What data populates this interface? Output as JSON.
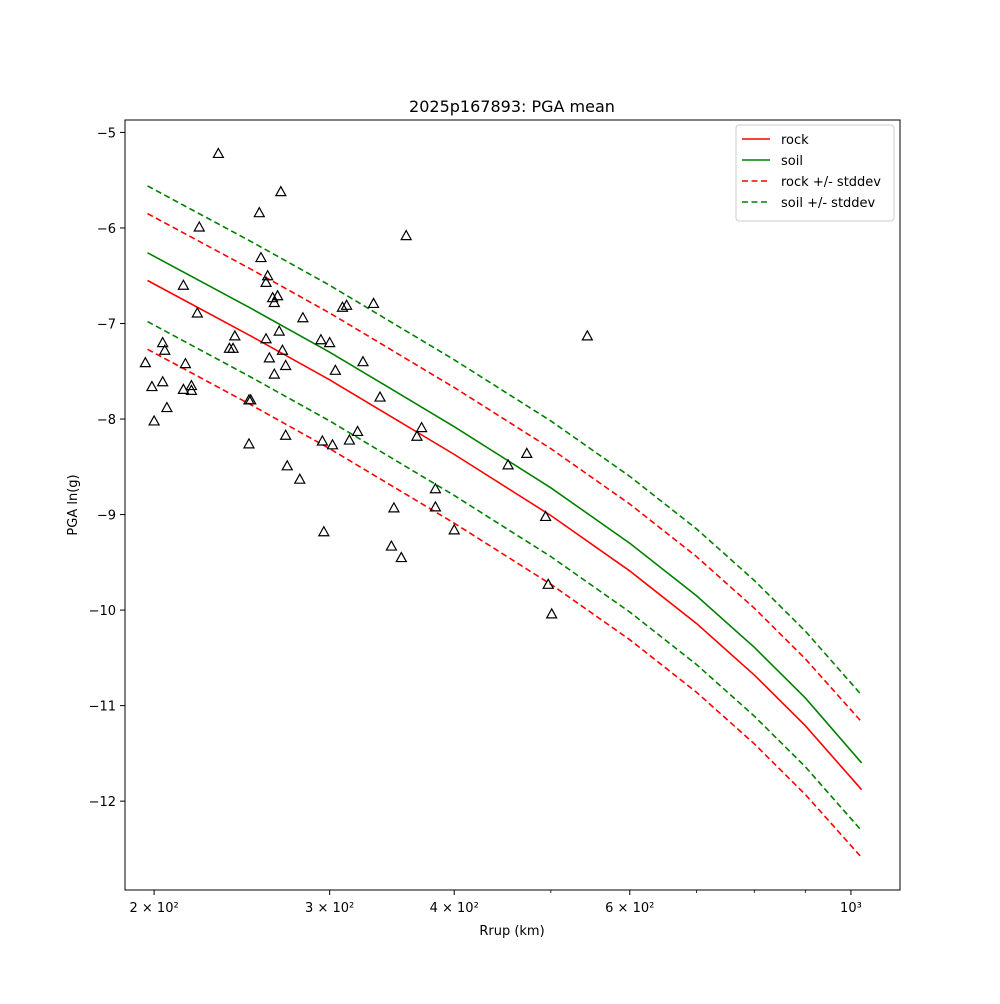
{
  "chart_data": {
    "type": "scatter",
    "title": "2025p167893: PGA mean",
    "xlabel": "Rrup (km)",
    "ylabel": "PGA ln(g)",
    "xscale": "log",
    "xlim": [
      187,
      1120
    ],
    "ylim": [
      -12.93,
      -4.87
    ],
    "x_ticks": [
      {
        "value": 200,
        "label": "2 × 10²"
      },
      {
        "value": 300,
        "label": "3 × 10²"
      },
      {
        "value": 400,
        "label": "4 × 10²"
      },
      {
        "value": 600,
        "label": "6 × 10²"
      },
      {
        "value": 1000,
        "label": "10³"
      }
    ],
    "x_minor_ticks": [
      500,
      700,
      800,
      900
    ],
    "y_ticks": [
      {
        "value": -5,
        "label": "−5"
      },
      {
        "value": -6,
        "label": "−6"
      },
      {
        "value": -7,
        "label": "−7"
      },
      {
        "value": -8,
        "label": "−8"
      },
      {
        "value": -9,
        "label": "−9"
      },
      {
        "value": -10,
        "label": "−10"
      },
      {
        "value": -11,
        "label": "−11"
      },
      {
        "value": -12,
        "label": "−12"
      }
    ],
    "grid": false,
    "legend_position": "top-right",
    "series": [
      {
        "name": "rock",
        "kind": "line",
        "style": "solid",
        "color": "#ff0000",
        "x": [
          197,
          250,
          300,
          400,
          500,
          600,
          700,
          800,
          900,
          1025
        ],
        "y": [
          -6.55,
          -7.13,
          -7.59,
          -8.37,
          -9.01,
          -9.59,
          -10.14,
          -10.68,
          -11.21,
          -11.88
        ]
      },
      {
        "name": "soil",
        "kind": "line",
        "style": "solid",
        "color": "#008000",
        "x": [
          197,
          250,
          300,
          400,
          500,
          600,
          700,
          800,
          900,
          1025
        ],
        "y": [
          -6.26,
          -6.84,
          -7.3,
          -8.08,
          -8.72,
          -9.3,
          -9.85,
          -10.39,
          -10.92,
          -11.6
        ]
      },
      {
        "name": "rock +/- stddev",
        "kind": "line",
        "style": "dashed",
        "color": "#ff0000",
        "x": [
          197,
          250,
          300,
          400,
          500,
          600,
          700,
          800,
          900,
          1025
        ],
        "y": [
          -5.85,
          -6.43,
          -6.89,
          -7.67,
          -8.31,
          -8.89,
          -9.44,
          -9.98,
          -10.51,
          -11.17
        ]
      },
      {
        "name": "",
        "kind": "line",
        "style": "dashed",
        "color": "#ff0000",
        "x": [
          197,
          250,
          300,
          400,
          500,
          600,
          700,
          800,
          900,
          1025
        ],
        "y": [
          -7.27,
          -7.85,
          -8.31,
          -9.09,
          -9.73,
          -10.31,
          -10.86,
          -11.4,
          -11.93,
          -12.59
        ]
      },
      {
        "name": "soil +/- stddev",
        "kind": "line",
        "style": "dashed",
        "color": "#008000",
        "x": [
          197,
          250,
          300,
          400,
          500,
          600,
          700,
          800,
          900,
          1025
        ],
        "y": [
          -5.56,
          -6.14,
          -6.6,
          -7.38,
          -8.02,
          -8.6,
          -9.15,
          -9.69,
          -10.22,
          -10.89
        ]
      },
      {
        "name": "",
        "kind": "line",
        "style": "dashed",
        "color": "#008000",
        "x": [
          197,
          250,
          300,
          400,
          500,
          600,
          700,
          800,
          900,
          1025
        ],
        "y": [
          -6.98,
          -7.56,
          -8.02,
          -8.8,
          -9.44,
          -10.02,
          -10.57,
          -11.11,
          -11.64,
          -12.31
        ]
      },
      {
        "name": "",
        "kind": "scatter",
        "marker": "triangle",
        "color": "#000000",
        "points": [
          [
            196,
            -7.41
          ],
          [
            199,
            -7.66
          ],
          [
            200,
            -8.02
          ],
          [
            204,
            -7.61
          ],
          [
            204,
            -7.2
          ],
          [
            205,
            -7.28
          ],
          [
            206,
            -7.88
          ],
          [
            214,
            -6.6
          ],
          [
            214,
            -7.69
          ],
          [
            215,
            -7.42
          ],
          [
            218,
            -7.65
          ],
          [
            218,
            -7.7
          ],
          [
            221,
            -6.89
          ],
          [
            222,
            -5.99
          ],
          [
            232,
            -5.22
          ],
          [
            238,
            -7.26
          ],
          [
            240,
            -7.26
          ],
          [
            241,
            -7.13
          ],
          [
            249,
            -7.8
          ],
          [
            249,
            -8.26
          ],
          [
            250,
            -7.8
          ],
          [
            255,
            -5.84
          ],
          [
            256,
            -6.31
          ],
          [
            259,
            -6.57
          ],
          [
            259,
            -7.16
          ],
          [
            260,
            -6.5
          ],
          [
            261,
            -7.36
          ],
          [
            263,
            -6.73
          ],
          [
            264,
            -6.78
          ],
          [
            264,
            -7.53
          ],
          [
            266,
            -6.71
          ],
          [
            267,
            -7.08
          ],
          [
            268,
            -5.62
          ],
          [
            269,
            -7.28
          ],
          [
            271,
            -7.44
          ],
          [
            271,
            -8.17
          ],
          [
            272,
            -8.49
          ],
          [
            280,
            -8.63
          ],
          [
            282,
            -6.94
          ],
          [
            294,
            -7.17
          ],
          [
            295,
            -8.23
          ],
          [
            296,
            -9.18
          ],
          [
            300,
            -7.2
          ],
          [
            302,
            -8.27
          ],
          [
            304,
            -7.49
          ],
          [
            309,
            -6.83
          ],
          [
            312,
            -6.81
          ],
          [
            314,
            -8.22
          ],
          [
            320,
            -8.13
          ],
          [
            324,
            -7.4
          ],
          [
            332,
            -6.79
          ],
          [
            337,
            -7.77
          ],
          [
            346,
            -9.33
          ],
          [
            348,
            -8.93
          ],
          [
            354,
            -9.45
          ],
          [
            358,
            -6.08
          ],
          [
            367,
            -8.18
          ],
          [
            371,
            -8.09
          ],
          [
            383,
            -8.73
          ],
          [
            383,
            -8.92
          ],
          [
            400,
            -9.16
          ],
          [
            453,
            -8.48
          ],
          [
            473,
            -8.36
          ],
          [
            494,
            -9.02
          ],
          [
            497,
            -9.73
          ],
          [
            501,
            -10.04
          ],
          [
            544,
            -7.13
          ]
        ]
      }
    ]
  }
}
